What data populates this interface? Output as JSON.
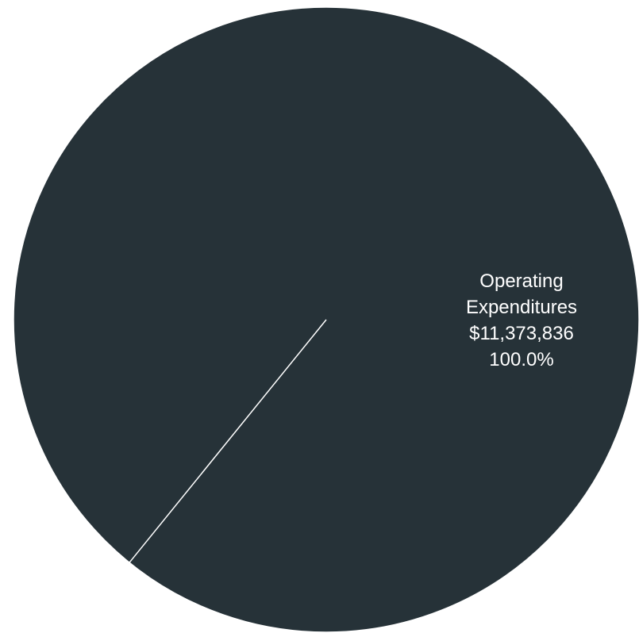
{
  "chart_data": {
    "type": "pie",
    "slices": [
      {
        "label_lines": [
          "Operating",
          "Expenditures"
        ],
        "value": 11373836,
        "value_text": "$11,373,836",
        "percent": 100.0,
        "percent_text": "100.0%",
        "color": "#263238"
      }
    ],
    "edge_color": "#ffffff",
    "legend": "none"
  }
}
